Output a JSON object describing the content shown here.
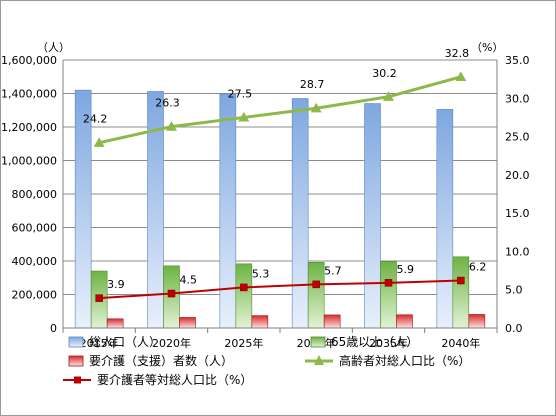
{
  "chart_data": {
    "type": "bar",
    "categories": [
      "2015年",
      "2020年",
      "2025年",
      "2030年",
      "2035年",
      "2040年"
    ],
    "y_left": {
      "unit_label": "（人）",
      "ticks": [
        "0",
        "200,000",
        "400,000",
        "600,000",
        "800,000",
        "1,000,000",
        "1,200,000",
        "1,400,000",
        "1,600,000"
      ],
      "ylim": [
        0,
        1600000
      ]
    },
    "y_right": {
      "unit_label": "（%）",
      "ticks": [
        "0.0",
        "5.0",
        "10.0",
        "15.0",
        "20.0",
        "25.0",
        "30.0",
        "35.0"
      ],
      "ylim": [
        0,
        35
      ]
    },
    "series": [
      {
        "name": "総人口（人）",
        "type": "bar",
        "axis": "left",
        "color": "#8fb3e3",
        "values": [
          1420000,
          1412000,
          1396000,
          1370000,
          1340000,
          1305000
        ]
      },
      {
        "name": "65歳以上（人）",
        "type": "bar",
        "axis": "left",
        "color": "#8fc566",
        "values": [
          340000,
          371000,
          383000,
          392000,
          397000,
          425000
        ]
      },
      {
        "name": "要介護（支援）者数（人）",
        "type": "bar",
        "axis": "left",
        "color": "#e14a4a",
        "values": [
          55000,
          63000,
          74000,
          78000,
          79000,
          81000
        ]
      },
      {
        "name": "高齢者対総人口比（%）",
        "type": "line",
        "axis": "right",
        "color": "#8db84a",
        "marker": "triangle",
        "values": [
          24.2,
          26.3,
          27.5,
          28.7,
          30.2,
          32.8
        ],
        "labels": [
          "24.2",
          "26.3",
          "27.5",
          "28.7",
          "30.2",
          "32.8"
        ]
      },
      {
        "name": "要介護者等対総人口比（%）",
        "type": "line",
        "axis": "right",
        "color": "#c00000",
        "marker": "square",
        "values": [
          3.9,
          4.5,
          5.3,
          5.7,
          5.9,
          6.2
        ],
        "labels": [
          "3.9",
          "4.5",
          "5.3",
          "5.7",
          "5.9",
          "6.2"
        ]
      }
    ],
    "legend_position": "bottom",
    "grid": true
  }
}
